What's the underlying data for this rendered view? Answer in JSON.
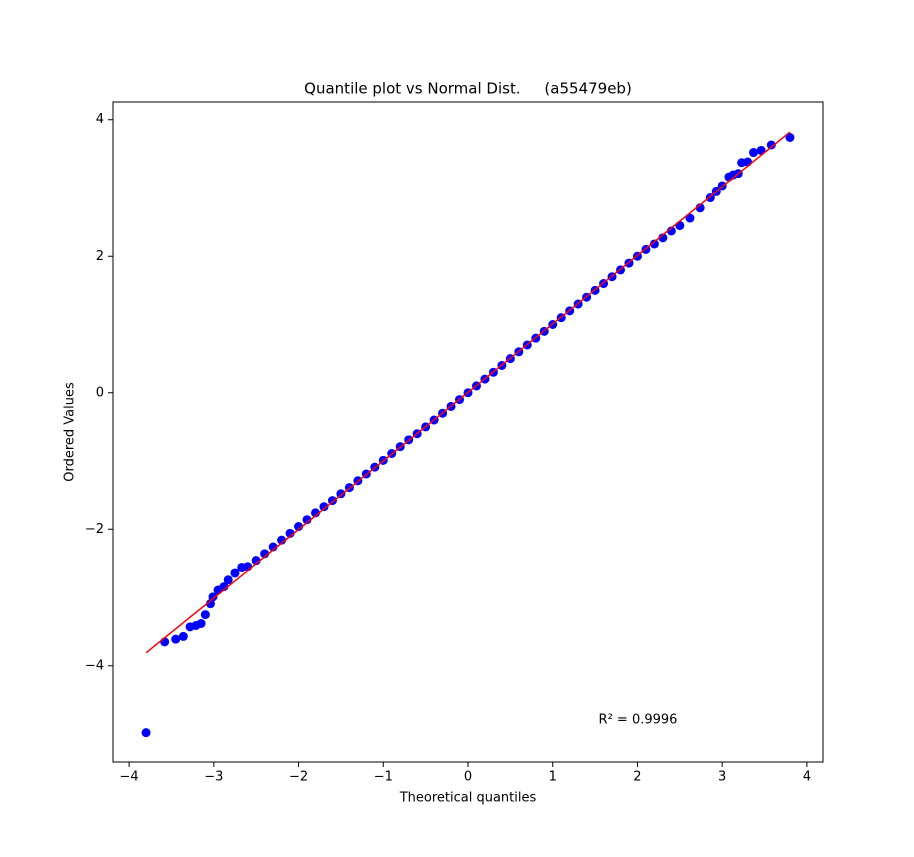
{
  "chart_data": {
    "type": "scatter",
    "title": "Quantile plot vs Normal Dist.     (a55479eb)",
    "x_label": "Theoretical quantiles",
    "y_label": "Ordered Values",
    "annotation": "R² = 0.9996",
    "xlim": [
      -4.19,
      4.19
    ],
    "ylim": [
      -5.41,
      4.26
    ],
    "xticks": [
      {
        "value": -4,
        "label": "−4"
      },
      {
        "value": -3,
        "label": "−3"
      },
      {
        "value": -2,
        "label": "−2"
      },
      {
        "value": -1,
        "label": "−1"
      },
      0,
      1,
      2,
      3,
      4
    ],
    "yticks": [
      {
        "value": -4,
        "label": "−4"
      },
      {
        "value": -2,
        "label": "−2"
      },
      0,
      2,
      4
    ],
    "grid": false,
    "points": {
      "color": "#0000ff",
      "x": [
        -3.8,
        -3.58,
        -3.45,
        -3.36,
        -3.28,
        -3.21,
        -3.15,
        -3.1,
        -3.04,
        -3.01,
        -2.95,
        -2.88,
        -2.83,
        -2.75,
        -2.67,
        -2.6,
        -2.5,
        -2.4,
        -2.3,
        -2.2,
        -2.1,
        -2.0,
        -1.9,
        -1.8,
        -1.7,
        -1.6,
        -1.5,
        -1.4,
        -1.3,
        -1.2,
        -1.1,
        -1.0,
        -0.9,
        -0.8,
        -0.7,
        -0.6,
        -0.5,
        -0.4,
        -0.3,
        -0.2,
        -0.1,
        0,
        0.1,
        0.2,
        0.3,
        0.4,
        0.5,
        0.6,
        0.7,
        0.8,
        0.9,
        1.0,
        1.1,
        1.2,
        1.3,
        1.4,
        1.5,
        1.6,
        1.7,
        1.8,
        1.9,
        2.0,
        2.1,
        2.2,
        2.3,
        2.4,
        2.5,
        2.62,
        2.74,
        2.86,
        2.93,
        3.0,
        3.08,
        3.13,
        3.19,
        3.23,
        3.3,
        3.37,
        3.46,
        3.58,
        3.8
      ],
      "y": [
        -4.98,
        -3.65,
        -3.61,
        -3.57,
        -3.43,
        -3.41,
        -3.38,
        -3.25,
        -3.09,
        -2.99,
        -2.89,
        -2.84,
        -2.74,
        -2.64,
        -2.56,
        -2.55,
        -2.46,
        -2.36,
        -2.26,
        -2.16,
        -2.06,
        -1.96,
        -1.86,
        -1.76,
        -1.67,
        -1.58,
        -1.48,
        -1.39,
        -1.29,
        -1.19,
        -1.09,
        -0.99,
        -0.89,
        -0.79,
        -0.69,
        -0.6,
        -0.5,
        -0.4,
        -0.3,
        -0.2,
        -0.1,
        0,
        0.1,
        0.2,
        0.3,
        0.4,
        0.5,
        0.6,
        0.7,
        0.8,
        0.9,
        1.0,
        1.1,
        1.2,
        1.3,
        1.4,
        1.5,
        1.6,
        1.7,
        1.8,
        1.9,
        2.0,
        2.1,
        2.18,
        2.27,
        2.37,
        2.45,
        2.56,
        2.71,
        2.86,
        2.95,
        3.03,
        3.16,
        3.19,
        3.21,
        3.37,
        3.38,
        3.52,
        3.55,
        3.63,
        3.74
      ]
    },
    "fit_line": {
      "color": "#ff0000",
      "x": [
        -3.8,
        3.8
      ],
      "y": [
        -3.81,
        3.82
      ]
    }
  }
}
